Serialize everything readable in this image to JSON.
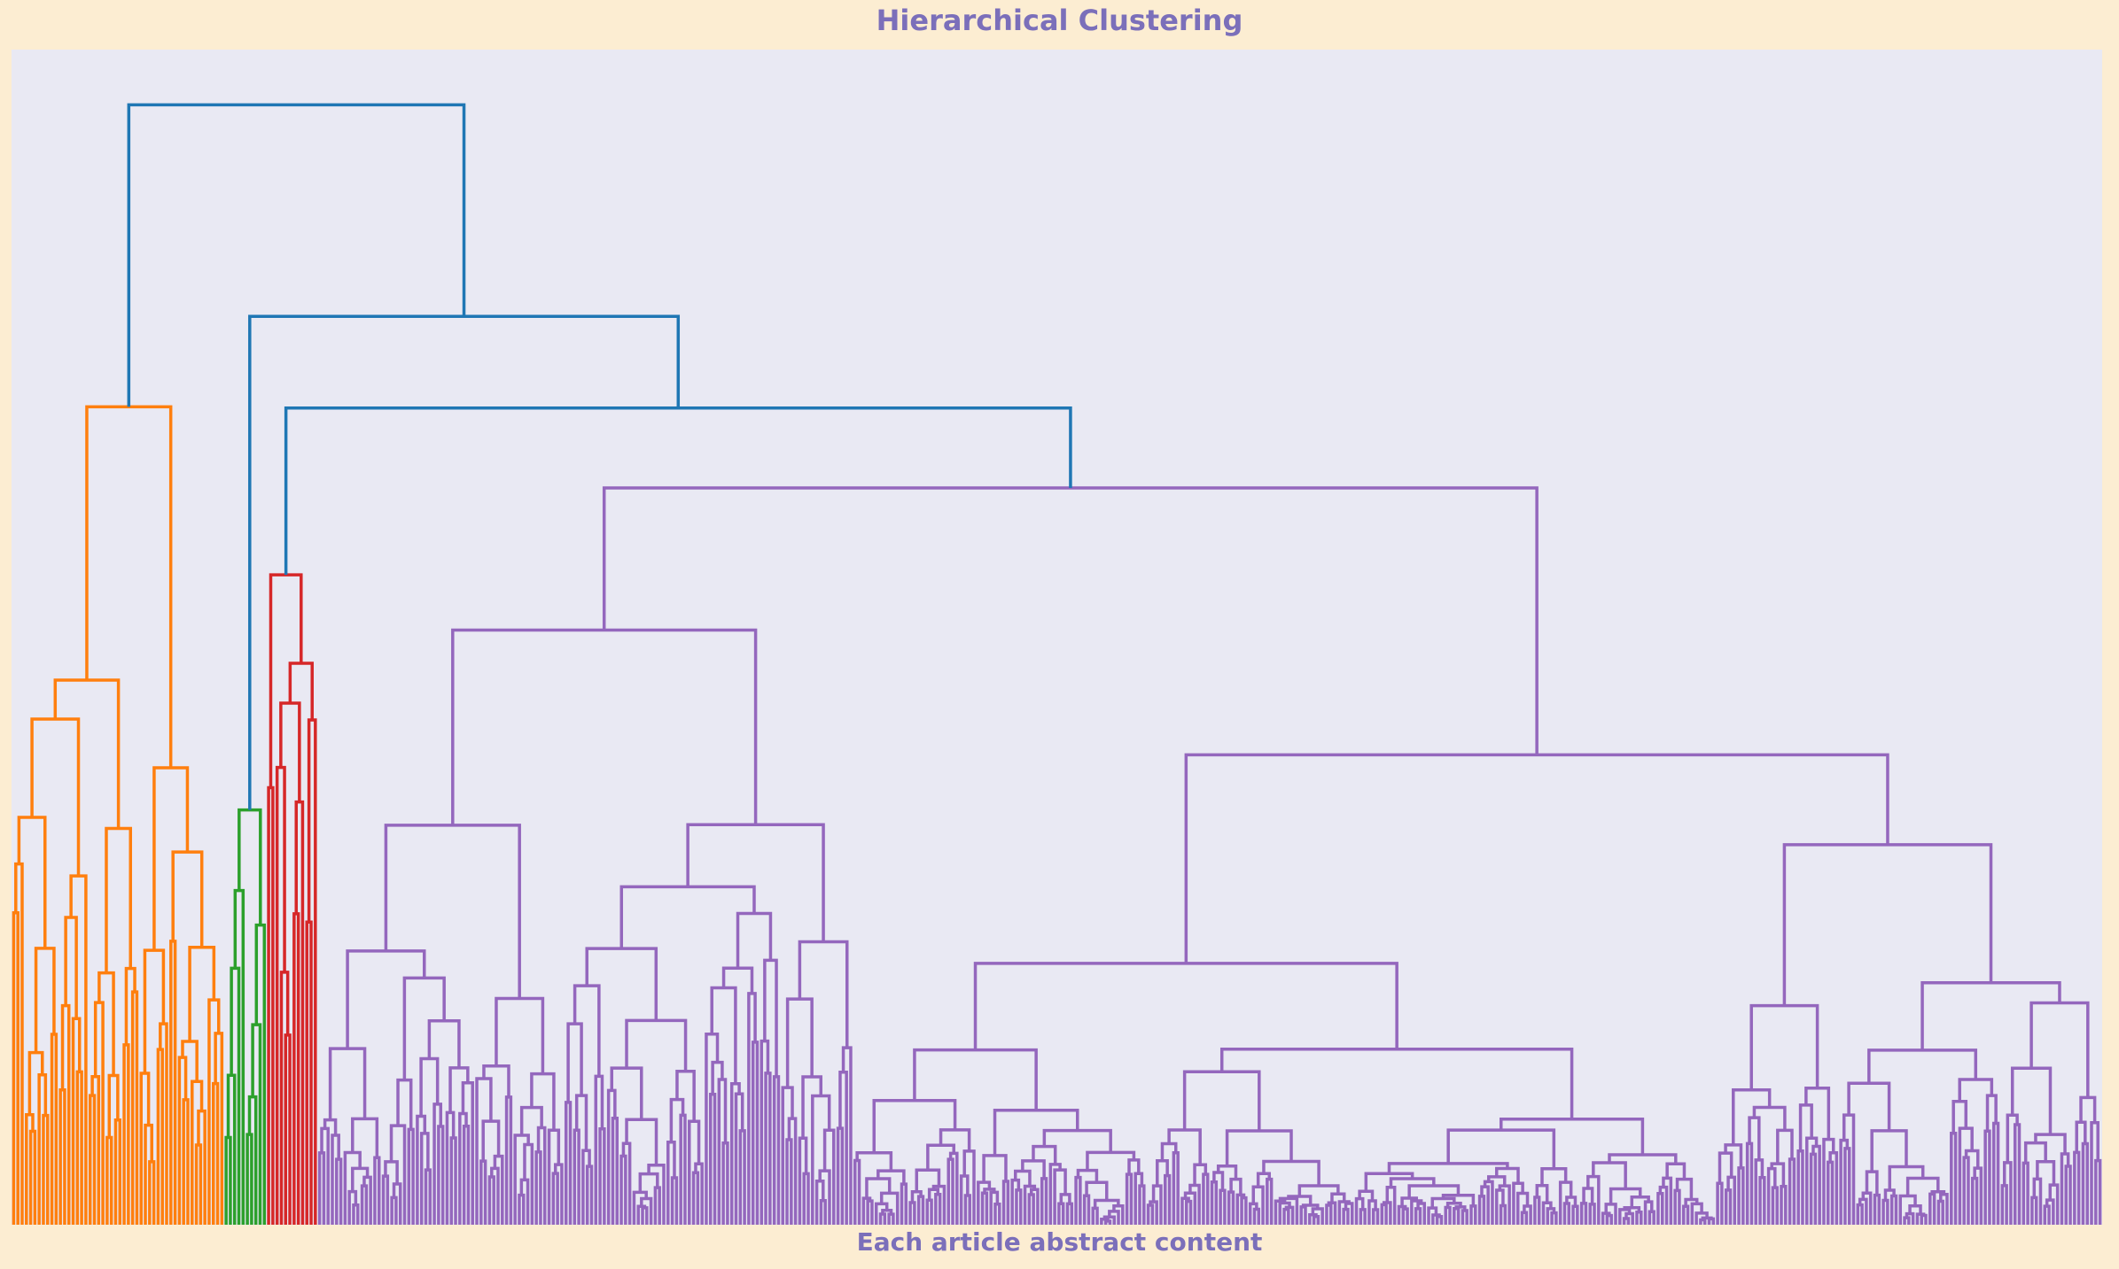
{
  "chart_data": {
    "type": "dendrogram",
    "title": "Hierarchical Clustering",
    "xlabel": "Each article abstract content",
    "ylabel": "",
    "grid": false,
    "legend": "none",
    "colors": {
      "figure_bg": "#FCEDD2",
      "plot_bg": "#E9E9F3",
      "title_text": "#7B6FBA",
      "root_links": "#1F77B4"
    },
    "clusters": [
      {
        "name": "",
        "color": "#FF7F0E",
        "leaves": 50,
        "merge_height": 0.696
      },
      {
        "name": "",
        "color": "#2CA02C",
        "leaves": 10,
        "merge_height": 0.353
      },
      {
        "name": "",
        "color": "#D62728",
        "leaves": 12,
        "merge_height": 0.553
      },
      {
        "name": "",
        "color": "#9467BD",
        "leaves": 420,
        "merge_height": 0.627
      }
    ],
    "root_merges": [
      {
        "join": [
          "cluster-3",
          "cluster-4"
        ],
        "height": 0.695
      },
      {
        "join": [
          "cluster-2",
          "previous"
        ],
        "height": 0.773
      },
      {
        "join": [
          "cluster-1",
          "previous"
        ],
        "height": 0.953
      }
    ]
  }
}
